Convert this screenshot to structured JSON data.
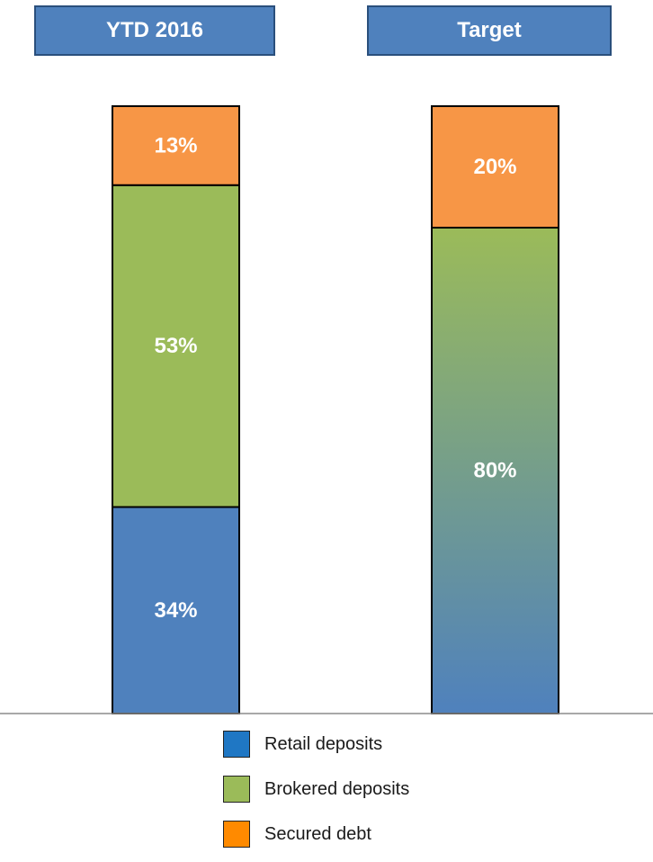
{
  "headers": {
    "ytd": "YTD 2016",
    "target": "Target"
  },
  "chart_data": {
    "type": "bar",
    "stacked": true,
    "categories": [
      "YTD 2016",
      "Target"
    ],
    "ylim": [
      0,
      100
    ],
    "grid": false,
    "legend_position": "bottom-center",
    "series": [
      {
        "name": "Retail deposits",
        "color": "#4f81bd",
        "values": [
          34,
          null
        ]
      },
      {
        "name": "Brokered deposits",
        "color": "#9bbb59",
        "values": [
          53,
          null
        ]
      },
      {
        "name": "Secured debt",
        "color": "#f79646",
        "values": [
          13,
          20
        ]
      }
    ],
    "combined_segment": {
      "description_series": [
        "Retail deposits",
        "Brokered deposits"
      ],
      "category": "Target",
      "value": 80,
      "gradient_colors": [
        "#9bbb59",
        "#4f81bd"
      ]
    },
    "data_labels": [
      {
        "category": "YTD 2016",
        "series": "Retail deposits",
        "text": "34%"
      },
      {
        "category": "YTD 2016",
        "series": "Brokered deposits",
        "text": "53%"
      },
      {
        "category": "YTD 2016",
        "series": "Secured debt",
        "text": "13%"
      },
      {
        "category": "Target",
        "series": "combined",
        "text": "80%"
      },
      {
        "category": "Target",
        "series": "Secured debt",
        "text": "20%"
      }
    ]
  },
  "legend": {
    "items": [
      {
        "label": "Retail deposits",
        "color": "#1f77c4"
      },
      {
        "label": "Brokered deposits",
        "color": "#9bbb59"
      },
      {
        "label": "Secured debt",
        "color": "#ff8a00"
      }
    ]
  }
}
